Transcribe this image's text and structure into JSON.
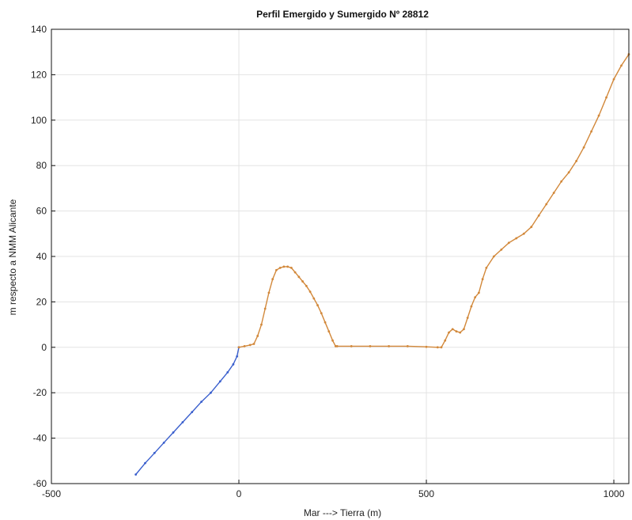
{
  "chart_data": {
    "type": "line",
    "title": "Perfil Emergido y Sumergido Nº 28812",
    "xlabel": "Mar ---> Tierra (m)",
    "ylabel": "m respecto a NMM Alicante",
    "xlim": [
      -500,
      1040
    ],
    "ylim": [
      -60,
      140
    ],
    "xticks": [
      -500,
      0,
      500,
      1000
    ],
    "yticks": [
      -60,
      -40,
      -20,
      0,
      20,
      40,
      60,
      80,
      100,
      120,
      140
    ],
    "grid": true,
    "legend": "none",
    "series": [
      {
        "color": "#3a5fcd",
        "marker": "dot",
        "x": [
          -275,
          -250,
          -225,
          -200,
          -175,
          -150,
          -125,
          -100,
          -75,
          -50,
          -30,
          -15,
          -5,
          0
        ],
        "y": [
          -56,
          -51,
          -46.5,
          -42,
          -37.5,
          -33,
          -28.5,
          -24,
          -20,
          -15,
          -11,
          -7.5,
          -4,
          0
        ]
      },
      {
        "color": "#d2883a",
        "marker": "dot",
        "x": [
          0,
          15,
          30,
          40,
          50,
          60,
          70,
          80,
          90,
          100,
          110,
          120,
          130,
          140,
          150,
          160,
          170,
          180,
          190,
          200,
          210,
          220,
          230,
          240,
          250,
          258,
          262,
          300,
          350,
          400,
          450,
          500,
          530,
          540,
          550,
          560,
          570,
          580,
          590,
          600,
          610,
          620,
          630,
          640,
          650,
          660,
          680,
          700,
          720,
          740,
          760,
          780,
          800,
          820,
          840,
          860,
          880,
          900,
          920,
          940,
          960,
          980,
          1000,
          1020,
          1040
        ],
        "y": [
          0,
          0.5,
          1,
          1.5,
          5,
          10,
          17,
          24,
          30,
          34,
          35,
          35.5,
          35.5,
          35,
          33,
          31,
          29,
          27,
          24.5,
          21.5,
          18.5,
          15,
          11,
          7,
          3,
          0.5,
          0.5,
          0.5,
          0.5,
          0.5,
          0.5,
          0.2,
          0,
          0,
          3,
          6.5,
          8,
          7,
          6.5,
          8,
          13,
          18,
          22,
          24,
          30,
          35,
          40,
          43,
          46,
          48,
          50,
          53,
          58,
          63,
          68,
          73,
          77,
          82,
          88,
          95,
          102,
          110,
          118,
          124,
          129
        ]
      }
    ]
  }
}
